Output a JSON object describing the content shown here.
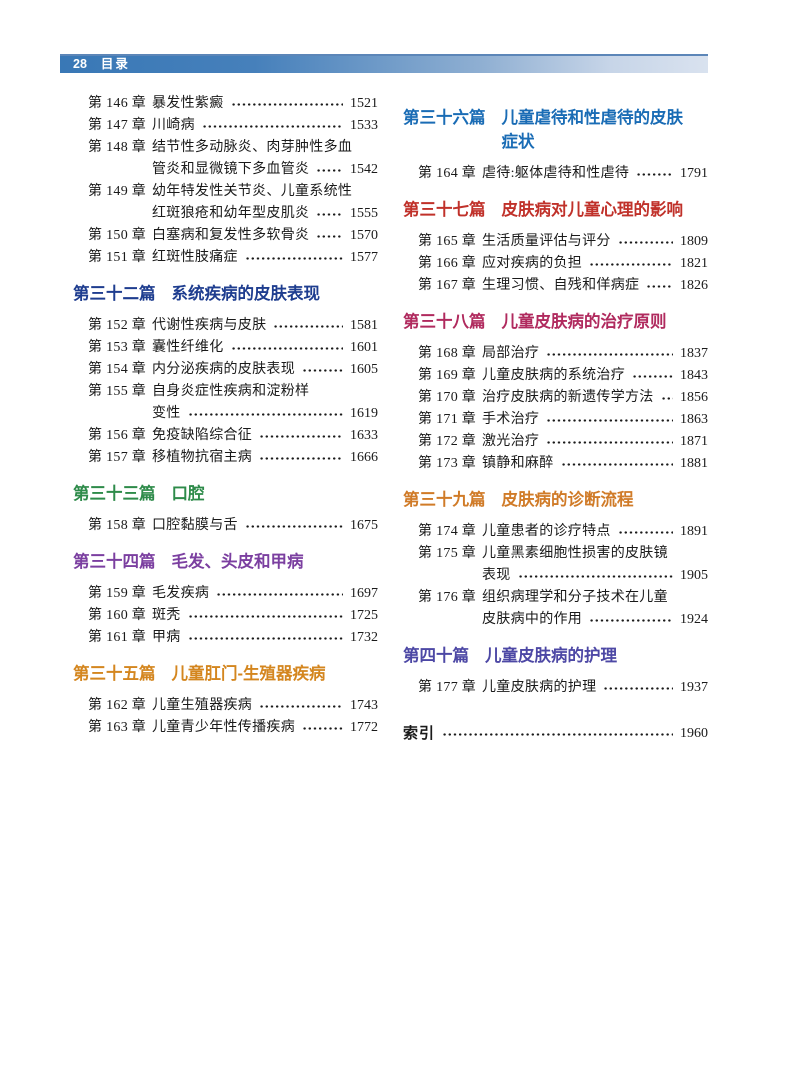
{
  "header_bar": {
    "page_number": "28",
    "title": "目录",
    "bar_color_left": "#3978b6",
    "bar_color_right": "#d9e2ef",
    "text_color": "#ffffff"
  },
  "columns": {
    "left": [
      {
        "header": null,
        "entries": [
          {
            "chapter": "第 146 章",
            "lines": [
              "暴发性紫癜"
            ],
            "page": "1521"
          },
          {
            "chapter": "第 147 章",
            "lines": [
              "川崎病"
            ],
            "page": "1533"
          },
          {
            "chapter": "第 148 章",
            "lines": [
              "结节性多动脉炎、肉芽肿性多血",
              "管炎和显微镜下多血管炎"
            ],
            "page": "1542"
          },
          {
            "chapter": "第 149 章",
            "lines": [
              "幼年特发性关节炎、儿童系统性",
              "红斑狼疮和幼年型皮肌炎"
            ],
            "page": "1555"
          },
          {
            "chapter": "第 150 章",
            "lines": [
              "白塞病和复发性多软骨炎"
            ],
            "page": "1570"
          },
          {
            "chapter": "第 151 章",
            "lines": [
              "红斑性肢痛症"
            ],
            "page": "1577"
          }
        ]
      },
      {
        "header": {
          "num": "第三十二篇",
          "lines": [
            "系统疾病的皮肤表现"
          ],
          "color": "#1e3d8f"
        },
        "entries": [
          {
            "chapter": "第 152 章",
            "lines": [
              "代谢性疾病与皮肤"
            ],
            "page": "1581"
          },
          {
            "chapter": "第 153 章",
            "lines": [
              "囊性纤维化"
            ],
            "page": "1601"
          },
          {
            "chapter": "第 154 章",
            "lines": [
              "内分泌疾病的皮肤表现"
            ],
            "page": "1605"
          },
          {
            "chapter": "第 155 章",
            "lines": [
              "自身炎症性疾病和淀粉样",
              "变性"
            ],
            "page": "1619"
          },
          {
            "chapter": "第 156 章",
            "lines": [
              "免疫缺陷综合征"
            ],
            "page": "1633"
          },
          {
            "chapter": "第 157 章",
            "lines": [
              "移植物抗宿主病"
            ],
            "page": "1666"
          }
        ]
      },
      {
        "header": {
          "num": "第三十三篇",
          "lines": [
            "口腔"
          ],
          "color": "#2e8b4a"
        },
        "entries": [
          {
            "chapter": "第 158 章",
            "lines": [
              "口腔黏膜与舌"
            ],
            "page": "1675"
          }
        ]
      },
      {
        "header": {
          "num": "第三十四篇",
          "lines": [
            "毛发、头皮和甲病"
          ],
          "color": "#7b3fa0"
        },
        "entries": [
          {
            "chapter": "第 159 章",
            "lines": [
              "毛发疾病"
            ],
            "page": "1697"
          },
          {
            "chapter": "第 160 章",
            "lines": [
              "斑秃"
            ],
            "page": "1725"
          },
          {
            "chapter": "第 161 章",
            "lines": [
              "甲病"
            ],
            "page": "1732"
          }
        ]
      },
      {
        "header": {
          "num": "第三十五篇",
          "lines": [
            "儿童肛门-生殖器疾病"
          ],
          "color": "#d4861f"
        },
        "entries": [
          {
            "chapter": "第 162 章",
            "lines": [
              "儿童生殖器疾病"
            ],
            "page": "1743"
          },
          {
            "chapter": "第 163 章",
            "lines": [
              "儿童青少年性传播疾病"
            ],
            "page": "1772"
          }
        ]
      }
    ],
    "right": [
      {
        "header": {
          "num": "第三十六篇",
          "lines": [
            "儿童虐待和性虐待的皮肤",
            "症状"
          ],
          "color": "#1a6cb5"
        },
        "entries": [
          {
            "chapter": "第 164 章",
            "lines": [
              "虐待:躯体虐待和性虐待"
            ],
            "page": "1791"
          }
        ]
      },
      {
        "header": {
          "num": "第三十七篇",
          "lines": [
            "皮肤病对儿童心理的影响"
          ],
          "color": "#c0312a"
        },
        "entries": [
          {
            "chapter": "第 165 章",
            "lines": [
              "生活质量评估与评分"
            ],
            "page": "1809"
          },
          {
            "chapter": "第 166 章",
            "lines": [
              "应对疾病的负担"
            ],
            "page": "1821"
          },
          {
            "chapter": "第 167 章",
            "lines": [
              "生理习惯、自残和佯病症"
            ],
            "page": "1826"
          }
        ]
      },
      {
        "header": {
          "num": "第三十八篇",
          "lines": [
            "儿童皮肤病的治疗原则"
          ],
          "color": "#b02a5e"
        },
        "entries": [
          {
            "chapter": "第 168 章",
            "lines": [
              "局部治疗"
            ],
            "page": "1837"
          },
          {
            "chapter": "第 169 章",
            "lines": [
              "儿童皮肤病的系统治疗"
            ],
            "page": "1843"
          },
          {
            "chapter": "第 170 章",
            "lines": [
              "治疗皮肤病的新遗传学方法"
            ],
            "page": "1856"
          },
          {
            "chapter": "第 171 章",
            "lines": [
              "手术治疗"
            ],
            "page": "1863"
          },
          {
            "chapter": "第 172 章",
            "lines": [
              "激光治疗"
            ],
            "page": "1871"
          },
          {
            "chapter": "第 173 章",
            "lines": [
              "镇静和麻醉"
            ],
            "page": "1881"
          }
        ]
      },
      {
        "header": {
          "num": "第三十九篇",
          "lines": [
            "皮肤病的诊断流程"
          ],
          "color": "#d07b28"
        },
        "entries": [
          {
            "chapter": "第 174 章",
            "lines": [
              "儿童患者的诊疗特点"
            ],
            "page": "1891"
          },
          {
            "chapter": "第 175 章",
            "lines": [
              "儿童黑素细胞性损害的皮肤镜",
              "表现"
            ],
            "page": "1905"
          },
          {
            "chapter": "第 176 章",
            "lines": [
              "组织病理学和分子技术在儿童",
              "皮肤病中的作用"
            ],
            "page": "1924"
          }
        ]
      },
      {
        "header": {
          "num": "第四十篇",
          "lines": [
            "儿童皮肤病的护理"
          ],
          "color": "#4d48a5"
        },
        "entries": [
          {
            "chapter": "第 177 章",
            "lines": [
              "儿童皮肤病的护理"
            ],
            "page": "1937"
          }
        ]
      }
    ]
  },
  "index_row": {
    "label": "索引",
    "page": "1960"
  }
}
